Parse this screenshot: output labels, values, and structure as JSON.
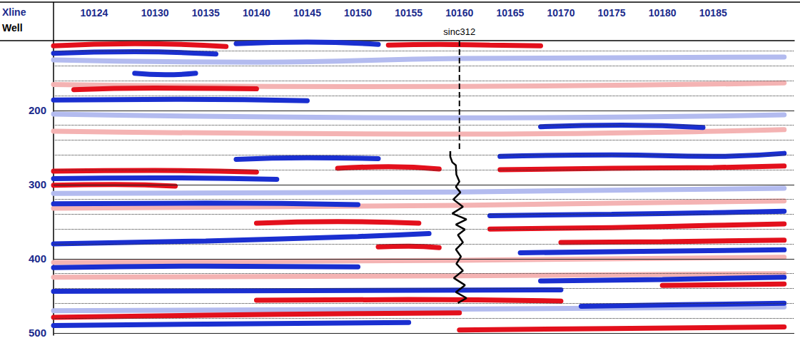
{
  "chart_data": {
    "type": "line",
    "xlabel": "Xline",
    "row_label": "Well",
    "xlim": [
      10120,
      10193
    ],
    "xticks": [
      10124,
      10130,
      10135,
      10140,
      10145,
      10150,
      10155,
      10160,
      10165,
      10170,
      10175,
      10180,
      10185
    ],
    "ylim": [
      106,
      503
    ],
    "yticks": [
      200,
      300,
      400,
      500
    ],
    "minor_yticks": [
      120,
      140,
      160,
      180,
      220,
      240,
      260,
      280,
      320,
      340,
      360,
      380,
      420,
      440,
      460,
      480
    ],
    "grid": true,
    "series": [
      {
        "color": "#b3bbef",
        "x": [
          10120,
          10140,
          10160,
          10192
        ],
        "values": [
          132,
          135,
          130,
          128
        ]
      },
      {
        "color": "#f4b3b3",
        "x": [
          10120,
          10150,
          10192
        ],
        "values": [
          165,
          168,
          163
        ]
      },
      {
        "color": "#b3bbef",
        "x": [
          10120,
          10160,
          10192
        ],
        "values": [
          205,
          210,
          206
        ]
      },
      {
        "color": "#f4b3b3",
        "x": [
          10120,
          10160,
          10192
        ],
        "values": [
          228,
          232,
          226
        ]
      },
      {
        "color": "#b3bbef",
        "x": [
          10120,
          10160,
          10192
        ],
        "values": [
          312,
          310,
          305
        ]
      },
      {
        "color": "#f4b3b3",
        "x": [
          10120,
          10160,
          10192
        ],
        "values": [
          332,
          328,
          322
        ]
      },
      {
        "color": "#f4b3b3",
        "x": [
          10120,
          10160,
          10192
        ],
        "values": [
          405,
          402,
          398
        ]
      },
      {
        "color": "#f4b3b3",
        "x": [
          10120,
          10160,
          10192
        ],
        "values": [
          425,
          423,
          420
        ]
      },
      {
        "color": "#b3bbef",
        "x": [
          10120,
          10160,
          10192
        ],
        "values": [
          470,
          468,
          465
        ]
      },
      {
        "color": "#e3101c",
        "x": [
          10120,
          10128,
          10137
        ],
        "values": [
          113,
          110,
          114
        ]
      },
      {
        "color": "#1a2fd0",
        "x": [
          10138,
          10145,
          10152
        ],
        "values": [
          110,
          108,
          111
        ]
      },
      {
        "color": "#e3101c",
        "x": [
          10153,
          10158,
          10163,
          10168
        ],
        "values": [
          112,
          111,
          112,
          113
        ]
      },
      {
        "color": "#1a2fd0",
        "x": [
          10120,
          10128,
          10136
        ],
        "values": [
          123,
          121,
          124
        ]
      },
      {
        "color": "#e3101c",
        "x": [
          10122,
          10130,
          10140
        ],
        "values": [
          172,
          170,
          171
        ]
      },
      {
        "color": "#1a2fd0",
        "x": [
          10128,
          10131,
          10134
        ],
        "values": [
          150,
          152,
          150
        ]
      },
      {
        "color": "#1a2fd0",
        "x": [
          10120,
          10132,
          10145
        ],
        "values": [
          186,
          185,
          187
        ]
      },
      {
        "color": "#1a2fd0",
        "x": [
          10168,
          10176,
          10184
        ],
        "values": [
          222,
          220,
          223
        ]
      },
      {
        "color": "#1a2fd0",
        "x": [
          10138,
          10145,
          10152
        ],
        "values": [
          266,
          264,
          265
        ]
      },
      {
        "color": "#1a2fd0",
        "x": [
          10164,
          10175,
          10185,
          10192
        ],
        "values": [
          262,
          260,
          262,
          258
        ]
      },
      {
        "color": "#e3101c",
        "x": [
          10120,
          10130,
          10140
        ],
        "values": [
          282,
          281,
          283
        ]
      },
      {
        "color": "#e3101c",
        "x": [
          10148,
          10153,
          10158
        ],
        "values": [
          278,
          276,
          279
        ]
      },
      {
        "color": "#e3101c",
        "x": [
          10164,
          10175,
          10185,
          10192
        ],
        "values": [
          280,
          278,
          277,
          275
        ]
      },
      {
        "color": "#1a2fd0",
        "x": [
          10120,
          10130,
          10142
        ],
        "values": [
          292,
          291,
          293
        ]
      },
      {
        "color": "#e3101c",
        "x": [
          10120,
          10126,
          10132
        ],
        "values": [
          301,
          300,
          302
        ]
      },
      {
        "color": "#1a2fd0",
        "x": [
          10120,
          10135,
          10150
        ],
        "values": [
          326,
          325,
          327
        ]
      },
      {
        "color": "#e3101c",
        "x": [
          10140,
          10148,
          10156
        ],
        "values": [
          352,
          350,
          352
        ]
      },
      {
        "color": "#1a2fd0",
        "x": [
          10163,
          10175,
          10185,
          10192
        ],
        "values": [
          342,
          340,
          338,
          336
        ]
      },
      {
        "color": "#e3101c",
        "x": [
          10163,
          10175,
          10185,
          10192
        ],
        "values": [
          360,
          358,
          355,
          353
        ]
      },
      {
        "color": "#1a2fd0",
        "x": [
          10120,
          10135,
          10150,
          10157
        ],
        "values": [
          380,
          376,
          370,
          366
        ]
      },
      {
        "color": "#e3101c",
        "x": [
          10152,
          10155,
          10158
        ],
        "values": [
          384,
          383,
          385
        ]
      },
      {
        "color": "#e3101c",
        "x": [
          10170,
          10180,
          10192
        ],
        "values": [
          378,
          377,
          375
        ]
      },
      {
        "color": "#1a2fd0",
        "x": [
          10166,
          10178,
          10192
        ],
        "values": [
          392,
          390,
          388
        ]
      },
      {
        "color": "#1a2fd0",
        "x": [
          10120,
          10135,
          10150
        ],
        "values": [
          412,
          410,
          411
        ]
      },
      {
        "color": "#1a2fd0",
        "x": [
          10168,
          10180,
          10192
        ],
        "values": [
          430,
          428,
          425
        ]
      },
      {
        "color": "#e3101c",
        "x": [
          10180,
          10186,
          10192
        ],
        "values": [
          436,
          435,
          434
        ]
      },
      {
        "color": "#1a2fd0",
        "x": [
          10120,
          10145,
          10170
        ],
        "values": [
          444,
          443,
          442
        ]
      },
      {
        "color": "#e3101c",
        "x": [
          10140,
          10155,
          10170
        ],
        "values": [
          456,
          455,
          457
        ]
      },
      {
        "color": "#1a2fd0",
        "x": [
          10172,
          10182,
          10192
        ],
        "values": [
          464,
          462,
          460
        ]
      },
      {
        "color": "#e3101c",
        "x": [
          10120,
          10135,
          10150,
          10160
        ],
        "values": [
          479,
          476,
          474,
          473
        ]
      },
      {
        "color": "#1a2fd0",
        "x": [
          10120,
          10135,
          10155
        ],
        "values": [
          490,
          488,
          486
        ]
      },
      {
        "color": "#e3101c",
        "x": [
          10160,
          10175,
          10192
        ],
        "values": [
          496,
          494,
          492
        ]
      }
    ],
    "well": {
      "name": "sinc312",
      "xline": 10160,
      "track": {
        "x": [
          10160,
          10160
        ],
        "values": [
          106,
          255
        ],
        "line_style": "dashed",
        "color": "#000000"
      },
      "log": {
        "x": [
          10159.1,
          10159.1,
          10159.3,
          10159.65,
          10159.7,
          10160,
          10159.65,
          10160.1,
          10159.4,
          10160.35,
          10159.3,
          10160.7,
          10159.65,
          10160.55,
          10159.85,
          10160.35,
          10159.65,
          10160.15,
          10159.7,
          10160.35,
          10159.45,
          10160.55,
          10159.65,
          10160.7,
          10159.85
        ],
        "values": [
          255,
          262.5,
          270,
          274,
          286.5,
          296,
          303,
          310.6,
          320,
          330,
          339,
          347,
          354,
          360.6,
          368,
          378,
          387.5,
          397,
          406.7,
          416,
          426,
          435.6,
          445,
          453,
          459.6
        ],
        "line_style": "solid",
        "color": "#000000"
      }
    }
  }
}
